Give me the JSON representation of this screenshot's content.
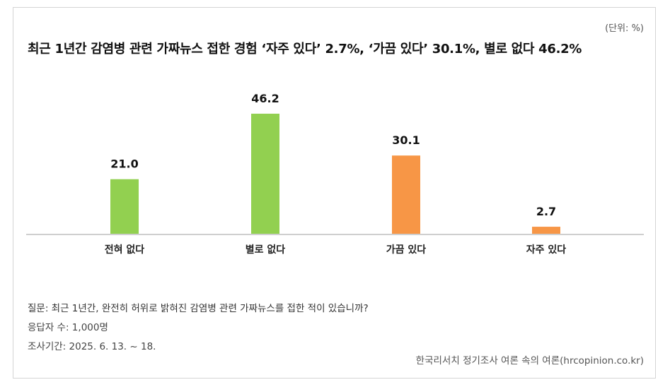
{
  "unit_label": "(단위: %)",
  "chart_data": {
    "type": "bar",
    "title": "최근 1년간 감염병 관련 가짜뉴스 접한 경험 ‘자주 있다’ 2.7%, ‘가끔 있다’ 30.1%, 별로 없다 46.2%",
    "categories": [
      "전혀 없다",
      "별로 없다",
      "가끔 있다",
      "자주 있다"
    ],
    "values": [
      21.0,
      46.2,
      30.1,
      2.7
    ],
    "value_labels": [
      "21.0",
      "46.2",
      "30.1",
      "2.7"
    ],
    "bar_colors": [
      "#92d050",
      "#92d050",
      "#f79646",
      "#f79646"
    ],
    "ylim": [
      0,
      46.2
    ],
    "grid": false,
    "xlabel": "",
    "ylabel": ""
  },
  "notes": {
    "question": "질문: 최근 1년간, 완전히 허위로 밝혀진 감염병 관련 가짜뉴스를 접한 적이 있습니까?",
    "respondents": "응답자 수: 1,000명",
    "period": "조사기간: 2025. 6. 13. ~ 18."
  },
  "source": "한국리서치 정기조사 여론 속의 여론(hrcopinion.co.kr)"
}
